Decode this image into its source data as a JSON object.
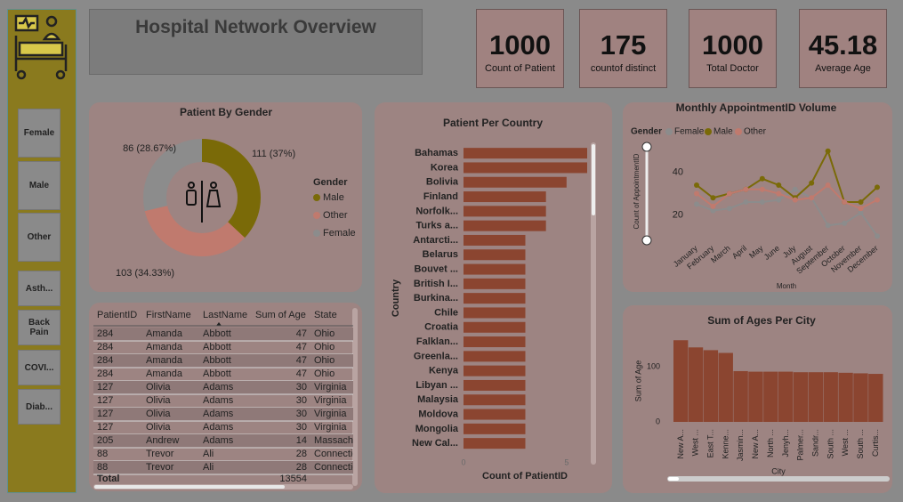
{
  "header": {
    "title": "Hospital Network Overview"
  },
  "kpis": [
    {
      "value": 1000,
      "label": "Count of Patient"
    },
    {
      "value": 175,
      "label": "countof distinct"
    },
    {
      "value": 1000,
      "label": "Total Doctor"
    },
    {
      "value": 45.18,
      "label": "Average Age"
    }
  ],
  "slicers": [
    "Female",
    "Male",
    "Other",
    "Asth...",
    "Back Pain",
    "COVI...",
    "Diab..."
  ],
  "chart_data": [
    {
      "type": "pie",
      "title": "Patient By Gender",
      "legend_title": "Gender",
      "categories": [
        "Male",
        "Other",
        "Female"
      ],
      "values": [
        111,
        103,
        86
      ],
      "value_labels": [
        "111 (37%)",
        "103 (34.33%)",
        "86 (28.67%)"
      ],
      "colors": [
        "#7a6a08",
        "#c07a6e",
        "#8c8c8c"
      ],
      "donut": true
    },
    {
      "type": "bar",
      "horizontal": true,
      "title": "Patient Per Country",
      "x_label": "Count of PatientID",
      "y_label": "Country",
      "categories": [
        "Bahamas",
        "Korea",
        "Bolivia",
        "Finland",
        "Norfolk...",
        "Turks a...",
        "Antarcti...",
        "Belarus",
        "Bouvet ...",
        "British I...",
        "Burkina...",
        "Chile",
        "Croatia",
        "Falklan...",
        "Greenla...",
        "Kenya",
        "Libyan ...",
        "Malaysia",
        "Moldova",
        "Mongolia",
        "New Cal..."
      ],
      "values": [
        6,
        6,
        5,
        4,
        4,
        4,
        3,
        3,
        3,
        3,
        3,
        3,
        3,
        3,
        3,
        3,
        3,
        3,
        3,
        3,
        3
      ],
      "color": "#8b4530",
      "xlim": [
        0,
        6
      ],
      "xticks": [
        0,
        5
      ]
    },
    {
      "type": "line",
      "title": "Monthly AppointmentID Volume",
      "legend_title": "Gender",
      "x_label": "Month",
      "y_label": "Count of AppointmentID",
      "categories": [
        "January",
        "February",
        "March",
        "April",
        "May",
        "June",
        "July",
        "August",
        "September",
        "October",
        "November",
        "December"
      ],
      "series": [
        {
          "name": "Female",
          "color": "#8c8c8c",
          "values": [
            25,
            22,
            23,
            26,
            26,
            27,
            32,
            28,
            15,
            16,
            21,
            10
          ]
        },
        {
          "name": "Male",
          "color": "#7a6a08",
          "values": [
            34,
            28,
            30,
            32,
            37,
            34,
            28,
            35,
            50,
            26,
            26,
            33
          ]
        },
        {
          "name": "Other",
          "color": "#c07a6e",
          "values": [
            30,
            24,
            30,
            32,
            32,
            30,
            27,
            28,
            34,
            26,
            23,
            27
          ]
        }
      ],
      "ylim": [
        8,
        52
      ],
      "yticks": [
        20,
        40
      ]
    },
    {
      "type": "bar",
      "title": "Sum of Ages Per City",
      "x_label": "City",
      "y_label": "Sum of Age",
      "categories": [
        "New A...",
        "West ...",
        "East T...",
        "Kenne...",
        "Jasmin...",
        "New A...",
        "North ...",
        "Jenyh...",
        "Palmer...",
        "Sandr...",
        "South ...",
        "West ...",
        "South ...",
        "Curtis..."
      ],
      "values": [
        148,
        135,
        130,
        125,
        92,
        91,
        91,
        91,
        90,
        90,
        90,
        89,
        88,
        87
      ],
      "color": "#8b4530",
      "ylim": [
        0,
        150
      ],
      "yticks": [
        0,
        100
      ]
    }
  ],
  "table": {
    "columns": [
      "PatientID",
      "FirstName",
      "LastName",
      "Sum of Age",
      "State"
    ],
    "rows": [
      [
        284,
        "Amanda",
        "Abbott",
        47,
        "Ohio"
      ],
      [
        284,
        "Amanda",
        "Abbott",
        47,
        "Ohio"
      ],
      [
        284,
        "Amanda",
        "Abbott",
        47,
        "Ohio"
      ],
      [
        284,
        "Amanda",
        "Abbott",
        47,
        "Ohio"
      ],
      [
        127,
        "Olivia",
        "Adams",
        30,
        "Virginia"
      ],
      [
        127,
        "Olivia",
        "Adams",
        30,
        "Virginia"
      ],
      [
        127,
        "Olivia",
        "Adams",
        30,
        "Virginia"
      ],
      [
        127,
        "Olivia",
        "Adams",
        30,
        "Virginia"
      ],
      [
        205,
        "Andrew",
        "Adams",
        14,
        "Massachusetts"
      ],
      [
        88,
        "Trevor",
        "Ali",
        28,
        "Connecticut"
      ],
      [
        88,
        "Trevor",
        "Ali",
        28,
        "Connecticut"
      ]
    ],
    "total": {
      "label": "Total",
      "value": 13554
    }
  }
}
